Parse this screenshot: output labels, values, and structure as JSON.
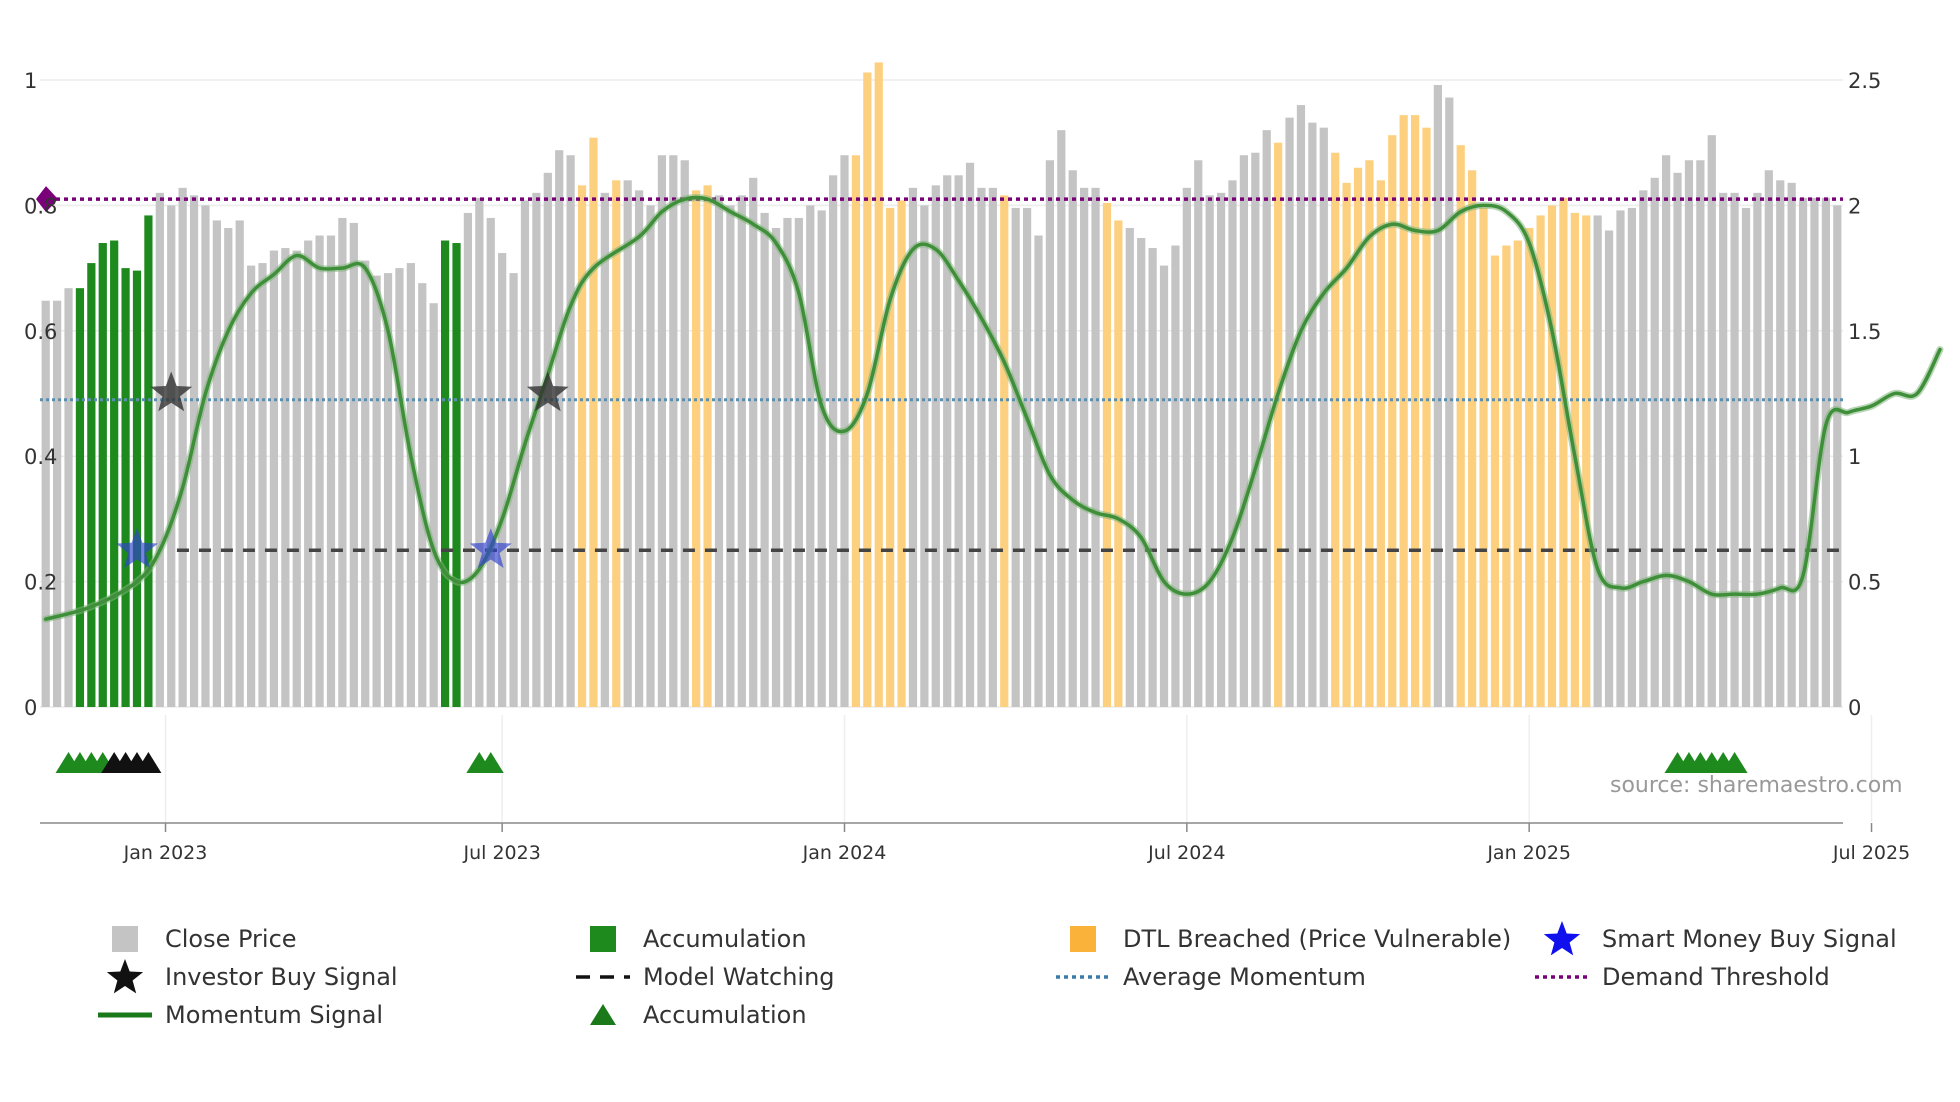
{
  "chart_data": {
    "type": "bar",
    "title": "",
    "source_label": "source: sharemaestro.com",
    "left_axis": {
      "range": [
        0,
        1
      ],
      "ticks": [
        "0",
        "0.2",
        "0.4",
        "0.6",
        "0.8",
        "1"
      ]
    },
    "right_axis": {
      "range": [
        0,
        2.5
      ],
      "ticks": [
        "0",
        "0.5",
        "1",
        "1.5",
        "2",
        "2.5"
      ]
    },
    "x_ticks": [
      "Jan 2023",
      "Jul 2023",
      "Jan 2024",
      "Jul 2024",
      "Jan 2025",
      "Jul 2025"
    ],
    "close_price": [
      1.62,
      1.62,
      1.67,
      1.67,
      1.77,
      1.85,
      1.86,
      1.75,
      1.74,
      1.96,
      2.05,
      2.0,
      2.07,
      2.04,
      2.0,
      1.94,
      1.91,
      1.94,
      1.76,
      1.77,
      1.82,
      1.83,
      1.82,
      1.86,
      1.88,
      1.88,
      1.95,
      1.93,
      1.78,
      1.72,
      1.73,
      1.75,
      1.77,
      1.69,
      1.61,
      1.86,
      1.85,
      1.97,
      2.03,
      1.95,
      1.81,
      1.73,
      2.02,
      2.05,
      2.13,
      2.22,
      2.2,
      2.08,
      2.27,
      2.05,
      2.1,
      2.1,
      2.06,
      2.0,
      2.2,
      2.2,
      2.18,
      2.06,
      2.08,
      2.04,
      2.0,
      2.04,
      2.11,
      1.97,
      1.91,
      1.95,
      1.95,
      2.0,
      1.98,
      2.12,
      2.2,
      2.2,
      2.53,
      2.57,
      1.99,
      2.02,
      2.07,
      2.0,
      2.08,
      2.12,
      2.12,
      2.17,
      2.07,
      2.07,
      2.04,
      1.99,
      1.99,
      1.88,
      2.18,
      2.3,
      2.14,
      2.07,
      2.07,
      2.01,
      1.94,
      1.91,
      1.87,
      1.83,
      1.76,
      1.84,
      2.07,
      2.18,
      2.04,
      2.05,
      2.1,
      2.2,
      2.21,
      2.3,
      2.25,
      2.35,
      2.4,
      2.33,
      2.31,
      2.21,
      2.09,
      2.15,
      2.18,
      2.1,
      2.28,
      2.36,
      2.36,
      2.31,
      2.48,
      2.43,
      2.24,
      2.14,
      1.99,
      1.8,
      1.84,
      1.86,
      1.91,
      1.96,
      2.0,
      2.03,
      1.97,
      1.96,
      1.96,
      1.9,
      1.98,
      1.99,
      2.06,
      2.11,
      2.2,
      2.13,
      2.18,
      2.18,
      2.28,
      2.05,
      2.05,
      1.99,
      2.05,
      2.14,
      2.1,
      2.09,
      2.03,
      2.03,
      2.03,
      2.0
    ],
    "bar_status": "AAAGGGGGGGAAAAAAAAAAAAAAAAAAAAAAAAAGGAAAAAAAAAAOOAOAAAAAAOOAAAAAAAAAAAAOOOOOAAAAAAAAOAAAAAAAAOOAAAAAAAAAAAAAOAAAAOOOOOOOOOAAOOOOOOOOOOOOAAAAAAAAAAAAAAAAAAAAAAAAGGGGAAAAAAOAOOOAAAAAAAAAA",
    "momentum": [
      [
        0,
        0.14
      ],
      [
        4,
        0.16
      ],
      [
        8,
        0.2
      ],
      [
        10,
        0.25
      ],
      [
        12,
        0.35
      ],
      [
        14,
        0.5
      ],
      [
        16,
        0.6
      ],
      [
        18,
        0.66
      ],
      [
        20,
        0.69
      ],
      [
        22,
        0.72
      ],
      [
        24,
        0.7
      ],
      [
        26,
        0.7
      ],
      [
        28,
        0.7
      ],
      [
        30,
        0.6
      ],
      [
        32,
        0.4
      ],
      [
        34,
        0.25
      ],
      [
        36,
        0.2
      ],
      [
        38,
        0.22
      ],
      [
        40,
        0.3
      ],
      [
        42,
        0.42
      ],
      [
        44,
        0.53
      ],
      [
        46,
        0.64
      ],
      [
        48,
        0.7
      ],
      [
        52,
        0.75
      ],
      [
        54,
        0.79
      ],
      [
        56,
        0.81
      ],
      [
        58,
        0.81
      ],
      [
        60,
        0.79
      ],
      [
        62,
        0.77
      ],
      [
        64,
        0.74
      ],
      [
        66,
        0.66
      ],
      [
        68,
        0.48
      ],
      [
        70,
        0.44
      ],
      [
        72,
        0.5
      ],
      [
        74,
        0.65
      ],
      [
        76,
        0.73
      ],
      [
        78,
        0.73
      ],
      [
        80,
        0.68
      ],
      [
        82,
        0.62
      ],
      [
        84,
        0.55
      ],
      [
        86,
        0.46
      ],
      [
        88,
        0.37
      ],
      [
        90,
        0.33
      ],
      [
        92,
        0.31
      ],
      [
        94,
        0.3
      ],
      [
        96,
        0.27
      ],
      [
        98,
        0.2
      ],
      [
        100,
        0.18
      ],
      [
        102,
        0.2
      ],
      [
        104,
        0.27
      ],
      [
        106,
        0.38
      ],
      [
        108,
        0.5
      ],
      [
        110,
        0.6
      ],
      [
        112,
        0.66
      ],
      [
        114,
        0.7
      ],
      [
        116,
        0.75
      ],
      [
        118,
        0.77
      ],
      [
        120,
        0.76
      ],
      [
        122,
        0.76
      ],
      [
        124,
        0.79
      ],
      [
        126,
        0.8
      ],
      [
        128,
        0.79
      ],
      [
        130,
        0.74
      ],
      [
        132,
        0.6
      ],
      [
        134,
        0.4
      ],
      [
        136,
        0.22
      ],
      [
        138,
        0.19
      ],
      [
        140,
        0.2
      ],
      [
        142,
        0.21
      ],
      [
        144,
        0.2
      ],
      [
        146,
        0.18
      ],
      [
        148,
        0.18
      ],
      [
        150,
        0.18
      ],
      [
        152,
        0.19
      ],
      [
        154,
        0.21
      ],
      [
        156,
        0.45
      ],
      [
        158,
        0.47
      ],
      [
        160,
        0.48
      ],
      [
        162,
        0.5
      ],
      [
        164,
        0.5
      ],
      [
        166,
        0.57
      ]
    ],
    "investor_buy_signals": [
      {
        "index": 11,
        "value": 0.5
      },
      {
        "index": 44,
        "value": 0.5
      }
    ],
    "smart_money_buy_signals": [
      {
        "index": 8,
        "value": 0.25
      },
      {
        "index": 39,
        "value": 0.25
      }
    ],
    "accumulation_markers": [
      {
        "index": 2,
        "color": "#1e8a1e"
      },
      {
        "index": 3,
        "color": "#1e8a1e"
      },
      {
        "index": 4,
        "color": "#1e8a1e"
      },
      {
        "index": 5,
        "color": "#1e8a1e"
      },
      {
        "index": 6,
        "color": "#111111"
      },
      {
        "index": 7,
        "color": "#111111"
      },
      {
        "index": 8,
        "color": "#111111"
      },
      {
        "index": 9,
        "color": "#111111"
      },
      {
        "index": 38,
        "color": "#1e8a1e"
      },
      {
        "index": 39,
        "color": "#1e8a1e"
      },
      {
        "index": 143,
        "color": "#1e8a1e"
      },
      {
        "index": 144,
        "color": "#1e8a1e"
      },
      {
        "index": 145,
        "color": "#1e8a1e"
      },
      {
        "index": 146,
        "color": "#1e8a1e"
      },
      {
        "index": 147,
        "color": "#1e8a1e"
      },
      {
        "index": 148,
        "color": "#1e8a1e"
      }
    ],
    "model_watching_level": 0.25,
    "average_momentum_level": 0.49,
    "demand_threshold_level": 0.81,
    "colors": {
      "close_price": "#c4c4c4",
      "accumulation": "#1e8a1e",
      "dtl_breached": "#fdd07f",
      "momentum": "#3f8f3a",
      "model_watching": "#444444",
      "average_momentum": "#5b8fb0",
      "demand_threshold": "#7a007a",
      "investor_star": "#333333",
      "smart_money_star": "#3040d0"
    },
    "legend": [
      {
        "label": "Close Price",
        "symbol": "gray-square-icon"
      },
      {
        "label": "Accumulation",
        "symbol": "green-square-icon"
      },
      {
        "label": "DTL Breached (Price Vulnerable)",
        "symbol": "orange-square-icon"
      },
      {
        "label": "Smart Money Buy Signal",
        "symbol": "blue-star-icon"
      },
      {
        "label": "Investor Buy Signal",
        "symbol": "black-star-icon"
      },
      {
        "label": "Model Watching",
        "symbol": "black-dashed-line-icon"
      },
      {
        "label": "Average Momentum",
        "symbol": "blue-dotted-line-icon"
      },
      {
        "label": "Demand Threshold",
        "symbol": "purple-dotted-line-icon"
      },
      {
        "label": "Momentum Signal",
        "symbol": "green-line-icon"
      },
      {
        "label": "Accumulation",
        "symbol": "green-triangle-icon"
      }
    ]
  }
}
